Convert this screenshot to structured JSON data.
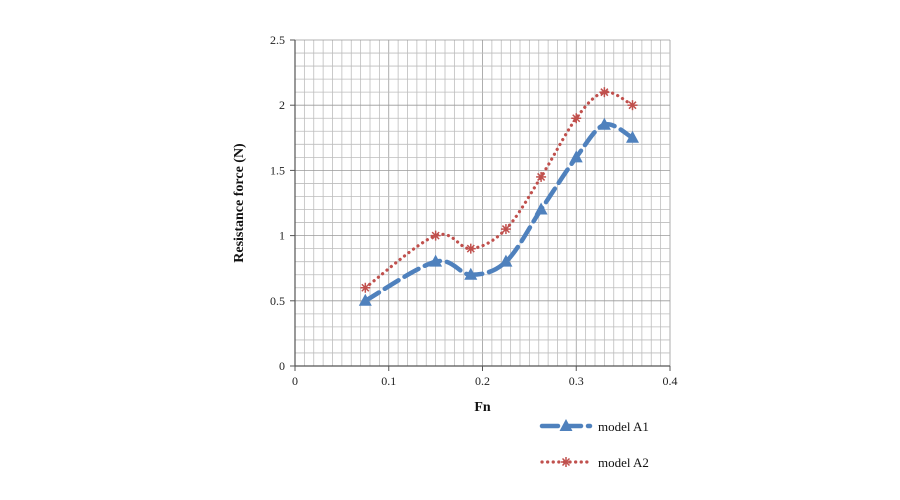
{
  "chart_data": {
    "type": "line",
    "title": "",
    "xlabel": "Fn",
    "ylabel": "Resistance force (N)",
    "xlim": [
      0,
      0.4
    ],
    "ylim": [
      0,
      2.5
    ],
    "x_ticks": [
      "0",
      "0.1",
      "0.2",
      "0.3",
      "0.4"
    ],
    "y_ticks": [
      "0",
      "0.5",
      "1",
      "1.5",
      "2",
      "2.5"
    ],
    "grid": true,
    "legend_position": "bottom-right",
    "series": [
      {
        "name": "model A1",
        "color": "#4f81bd",
        "line_style": "long-dash",
        "marker": "triangle",
        "x": [
          0.075,
          0.15,
          0.1875,
          0.225,
          0.2625,
          0.3,
          0.33,
          0.36
        ],
        "y": [
          0.5,
          0.8,
          0.7,
          0.8,
          1.2,
          1.6,
          1.85,
          1.75
        ]
      },
      {
        "name": "model A2",
        "color": "#c0504d",
        "line_style": "dotted",
        "marker": "asterisk",
        "x": [
          0.075,
          0.15,
          0.1875,
          0.225,
          0.2625,
          0.3,
          0.33,
          0.36
        ],
        "y": [
          0.6,
          1.0,
          0.9,
          1.05,
          1.45,
          1.9,
          2.1,
          2.0
        ]
      }
    ]
  }
}
